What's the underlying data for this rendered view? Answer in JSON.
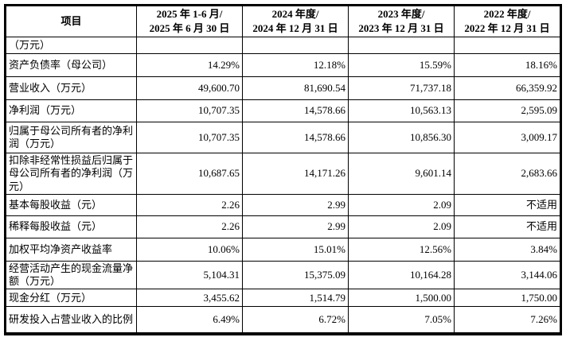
{
  "table": {
    "columns": [
      "项目",
      "2025 年 1-6 月/\n2025 年 6 月 30 日",
      "2024 年度/\n2024 年 12 月 31 日",
      "2023 年度/\n2023 年 12 月 31 日",
      "2022 年度/\n2022 年 12 月 31 日"
    ],
    "rows": [
      {
        "label": "（万元）",
        "values": [
          "",
          "",
          "",
          ""
        ]
      },
      {
        "label": "资产负债率（母公司）",
        "values": [
          "14.29%",
          "12.18%",
          "15.59%",
          "18.16%"
        ]
      },
      {
        "label": "营业收入（万元）",
        "values": [
          "49,600.70",
          "81,690.54",
          "71,737.18",
          "66,359.92"
        ]
      },
      {
        "label": "净利润（万元）",
        "values": [
          "10,707.35",
          "14,578.66",
          "10,563.13",
          "2,595.09"
        ]
      },
      {
        "label": "归属于母公司所有者的净利润（万元）",
        "values": [
          "10,707.35",
          "14,578.66",
          "10,856.30",
          "3,009.17"
        ]
      },
      {
        "label": "扣除非经常性损益后归属于母公司所有者的净利润（万元）",
        "values": [
          "10,687.65",
          "14,171.26",
          "9,601.14",
          "2,683.66"
        ]
      },
      {
        "label": "基本每股收益（元）",
        "values": [
          "2.26",
          "2.99",
          "2.09",
          "不适用"
        ]
      },
      {
        "label": "稀释每股收益（元）",
        "values": [
          "2.26",
          "2.99",
          "2.09",
          "不适用"
        ]
      },
      {
        "label": "加权平均净资产收益率",
        "values": [
          "10.06%",
          "15.01%",
          "12.56%",
          "3.84%"
        ]
      },
      {
        "label": "经营活动产生的现金流量净额（万元）",
        "values": [
          "5,104.31",
          "15,375.09",
          "10,164.28",
          "3,144.06"
        ]
      },
      {
        "label": "现金分红（万元）",
        "values": [
          "3,455.62",
          "1,514.79",
          "1,500.00",
          "1,750.00"
        ]
      },
      {
        "label": "研发投入占营业收入的比例",
        "values": [
          "6.49%",
          "6.72%",
          "7.05%",
          "7.26%"
        ]
      }
    ]
  }
}
